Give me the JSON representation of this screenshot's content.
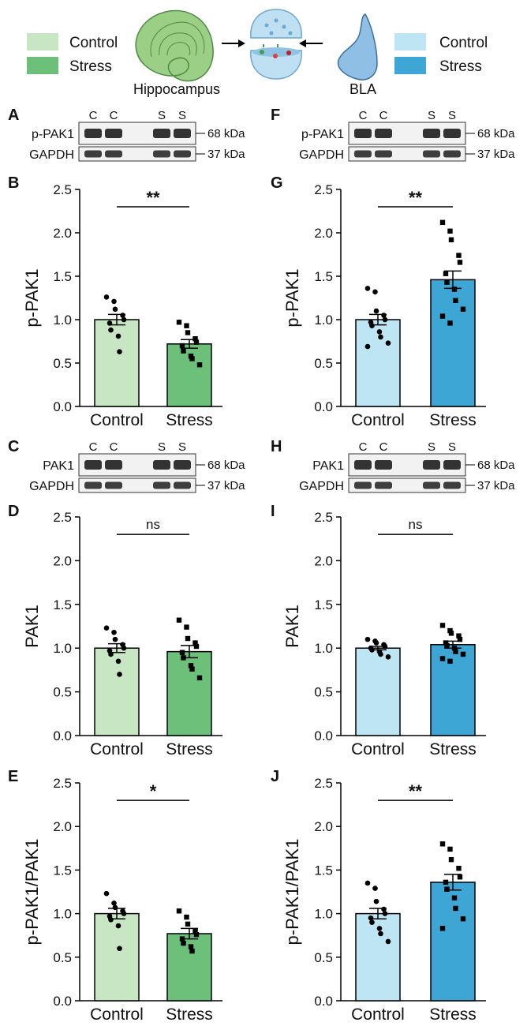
{
  "colors": {
    "hippo_control": "#c9e6c4",
    "hippo_stress": "#6cc07a",
    "bla_control": "#bde5f3",
    "bla_stress": "#3ea6d4",
    "hippo_shape": "#9ccf86",
    "bla_shape": "#8fbfe4",
    "synapse": "#bfe0f3"
  },
  "schematic": {
    "hippocampus_label": "Hippocampus",
    "bla_label": "BLA",
    "legend_left": [
      {
        "label": "Control",
        "color_key": "hippo_control",
        "icon": "legend-swatch"
      },
      {
        "label": "Stress",
        "color_key": "hippo_stress",
        "icon": "legend-swatch"
      }
    ],
    "legend_right": [
      {
        "label": "Control",
        "color_key": "bla_control",
        "icon": "legend-swatch"
      },
      {
        "label": "Stress",
        "color_key": "bla_stress",
        "icon": "legend-swatch"
      }
    ],
    "icons": [
      "hippocampus-icon",
      "synapse-icon",
      "bla-icon",
      "arrow-right-icon",
      "arrow-left-icon"
    ]
  },
  "blots": [
    {
      "letter": "A",
      "region": "hippocampus",
      "lanes": [
        "C",
        "C",
        "S",
        "S"
      ],
      "rows": [
        {
          "label": "p-PAK1",
          "kda": "68 kDa"
        },
        {
          "label": "GAPDH",
          "kda": "37 kDa"
        }
      ]
    },
    {
      "letter": "F",
      "region": "bla",
      "lanes": [
        "C",
        "C",
        "S",
        "S"
      ],
      "rows": [
        {
          "label": "p-PAK1",
          "kda": "68 kDa"
        },
        {
          "label": "GAPDH",
          "kda": "37 kDa"
        }
      ]
    },
    {
      "letter": "C",
      "region": "hippocampus",
      "lanes": [
        "C",
        "C",
        "S",
        "S"
      ],
      "rows": [
        {
          "label": "PAK1",
          "kda": "68 kDa"
        },
        {
          "label": "GAPDH",
          "kda": "37 kDa"
        }
      ]
    },
    {
      "letter": "H",
      "region": "bla",
      "lanes": [
        "C",
        "C",
        "S",
        "S"
      ],
      "rows": [
        {
          "label": "PAK1",
          "kda": "68 kDa"
        },
        {
          "label": "GAPDH",
          "kda": "37 kDa"
        }
      ]
    }
  ],
  "chart_data": [
    {
      "letter": "B",
      "type": "bar",
      "region": "hippocampus",
      "title": "",
      "xlabel": "",
      "ylabel": "p-PAK1",
      "categories": [
        "Control",
        "Stress"
      ],
      "values": [
        1.0,
        0.72
      ],
      "sem": [
        0.06,
        0.05
      ],
      "points": [
        [
          1.26,
          1.21,
          1.12,
          1.05,
          1.0,
          0.96,
          0.88,
          0.81,
          0.63
        ],
        [
          0.97,
          0.93,
          0.85,
          0.78,
          0.74,
          0.7,
          0.64,
          0.58,
          0.55,
          0.48
        ]
      ],
      "ylim": [
        0,
        2.5
      ],
      "yticks": [
        "0.0",
        "0.5",
        "1.0",
        "1.5",
        "2.0",
        "2.5"
      ],
      "significance": "**"
    },
    {
      "letter": "G",
      "type": "bar",
      "region": "bla",
      "title": "",
      "xlabel": "",
      "ylabel": "p-PAK1",
      "categories": [
        "Control",
        "Stress"
      ],
      "values": [
        1.0,
        1.46
      ],
      "sem": [
        0.06,
        0.1
      ],
      "points": [
        [
          1.36,
          1.32,
          1.1,
          1.05,
          1.0,
          0.97,
          0.93,
          0.86,
          0.8,
          0.73,
          0.69
        ],
        [
          2.12,
          2.02,
          1.92,
          1.74,
          1.66,
          1.53,
          1.43,
          1.35,
          1.22,
          1.12,
          1.04,
          0.96
        ]
      ],
      "ylim": [
        0,
        2.5
      ],
      "yticks": [
        "0.0",
        "0.5",
        "1.0",
        "1.5",
        "2.0",
        "2.5"
      ],
      "significance": "**"
    },
    {
      "letter": "D",
      "type": "bar",
      "region": "hippocampus",
      "title": "",
      "xlabel": "",
      "ylabel": "PAK1",
      "categories": [
        "Control",
        "Stress"
      ],
      "values": [
        1.0,
        0.96
      ],
      "sem": [
        0.05,
        0.07
      ],
      "points": [
        [
          1.23,
          1.18,
          1.1,
          1.04,
          1.0,
          0.97,
          0.93,
          0.85,
          0.7
        ],
        [
          1.32,
          1.24,
          1.11,
          1.06,
          1.02,
          0.95,
          0.89,
          0.8,
          0.76,
          0.66
        ]
      ],
      "ylim": [
        0,
        2.5
      ],
      "yticks": [
        "0.0",
        "0.5",
        "1.0",
        "1.5",
        "2.0",
        "2.5"
      ],
      "significance": "ns"
    },
    {
      "letter": "I",
      "type": "bar",
      "region": "bla",
      "title": "",
      "xlabel": "",
      "ylabel": "PAK1",
      "categories": [
        "Control",
        "Stress"
      ],
      "values": [
        1.0,
        1.04
      ],
      "sem": [
        0.02,
        0.04
      ],
      "points": [
        [
          1.1,
          1.08,
          1.06,
          1.04,
          1.02,
          1.0,
          0.98,
          0.96,
          0.93,
          0.9
        ],
        [
          1.26,
          1.2,
          1.17,
          1.14,
          1.1,
          1.06,
          1.03,
          1.0,
          0.96,
          0.93,
          0.88,
          0.85
        ]
      ],
      "ylim": [
        0,
        2.5
      ],
      "yticks": [
        "0.0",
        "0.5",
        "1.0",
        "1.5",
        "2.0",
        "2.5"
      ],
      "significance": "ns"
    },
    {
      "letter": "E",
      "type": "bar",
      "region": "hippocampus",
      "title": "",
      "xlabel": "",
      "ylabel": "p-PAK1/PAK1",
      "categories": [
        "Control",
        "Stress"
      ],
      "values": [
        1.0,
        0.77
      ],
      "sem": [
        0.06,
        0.06
      ],
      "points": [
        [
          1.23,
          1.12,
          1.07,
          1.03,
          1.0,
          0.97,
          0.93,
          0.86,
          0.6
        ],
        [
          1.03,
          0.96,
          0.88,
          0.8,
          0.76,
          0.71,
          0.66,
          0.62,
          0.57
        ]
      ],
      "ylim": [
        0,
        2.5
      ],
      "yticks": [
        "0.0",
        "0.5",
        "1.0",
        "1.5",
        "2.0",
        "2.5"
      ],
      "significance": "*"
    },
    {
      "letter": "J",
      "type": "bar",
      "region": "bla",
      "title": "",
      "xlabel": "",
      "ylabel": "p-PAK1/PAK1",
      "categories": [
        "Control",
        "Stress"
      ],
      "values": [
        1.0,
        1.36
      ],
      "sem": [
        0.06,
        0.09
      ],
      "points": [
        [
          1.35,
          1.29,
          1.14,
          1.05,
          1.0,
          0.95,
          0.9,
          0.83,
          0.77,
          0.68
        ],
        [
          1.8,
          1.74,
          1.62,
          1.52,
          1.42,
          1.36,
          1.28,
          1.18,
          1.06,
          0.94,
          0.83
        ]
      ],
      "ylim": [
        0,
        2.5
      ],
      "yticks": [
        "0.0",
        "0.5",
        "1.0",
        "1.5",
        "2.0",
        "2.5"
      ],
      "significance": "**"
    }
  ]
}
